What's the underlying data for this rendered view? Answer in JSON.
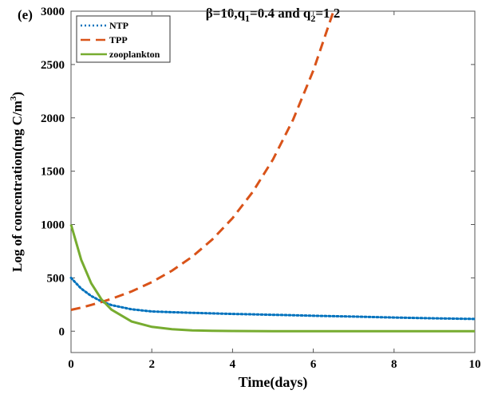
{
  "chart_data": {
    "type": "line",
    "panel_label": "(e)",
    "title": "β=10,q1=0.4 and q2=1.2",
    "title_parts": {
      "a": "β=10,q",
      "s1": "1",
      "b": "=0.4 and q",
      "s2": "2",
      "c": "=1.2"
    },
    "xlabel": "Time(days)",
    "ylabel": "Log of concentration(mg C/m",
    "ylabel_sup": "3",
    "ylabel_end": ")",
    "xlim": [
      0,
      10
    ],
    "ylim": [
      -200,
      3000
    ],
    "xticks": [
      0,
      2,
      4,
      6,
      8,
      10
    ],
    "yticks": [
      0,
      500,
      1000,
      1500,
      2000,
      2500,
      3000
    ],
    "grid": false,
    "legend_position": "top-left",
    "x": [
      0,
      0.25,
      0.5,
      0.75,
      1,
      1.5,
      2,
      2.5,
      3,
      3.5,
      4,
      4.5,
      5,
      5.5,
      6,
      6.5,
      7,
      8,
      9,
      10
    ],
    "series": [
      {
        "name": "NTP",
        "color": "#0072BD",
        "style": "dotted",
        "values": [
          500,
          400,
          330,
          280,
          245,
          205,
          185,
          178,
          172,
          167,
          162,
          158,
          154,
          150,
          145,
          141,
          137,
          128,
          121,
          115
        ]
      },
      {
        "name": "TPP",
        "color": "#D95319",
        "style": "dashed",
        "values": [
          200,
          221,
          246,
          273,
          303,
          373,
          460,
          567,
          698,
          860,
          1060,
          1306,
          1609,
          1983,
          2443,
          3000,
          null,
          null,
          null,
          null
        ]
      },
      {
        "name": "zooplankton",
        "color": "#77AC30",
        "style": "solid",
        "values": [
          1000,
          670,
          449,
          301,
          202,
          91,
          41,
          18,
          8,
          4,
          2,
          1,
          0,
          0,
          0,
          0,
          0,
          0,
          0,
          0
        ]
      }
    ]
  }
}
